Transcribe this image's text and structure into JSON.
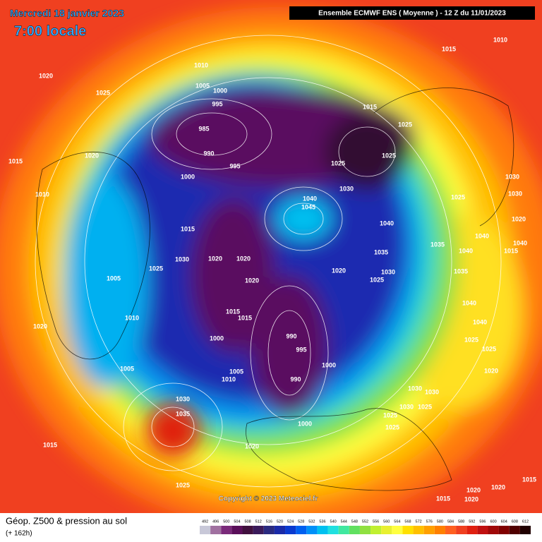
{
  "header": {
    "date": "Mercredi 18 janvier 2023",
    "time": "7:00 locale",
    "run": "Ensemble ECMWF ENS  ( Moyenne )  -  12 Z du 11/01/2023"
  },
  "copyright": "Copyright © 2023 Meteociel.fr",
  "footer": {
    "title": "Géop. Z500 & pression au sol",
    "lead": "(+ 162h)"
  },
  "scale": {
    "labels": [
      492,
      496,
      500,
      504,
      508,
      512,
      516,
      520,
      524,
      528,
      532,
      536,
      540,
      544,
      548,
      552,
      556,
      560,
      564,
      568,
      572,
      576,
      580,
      584,
      588,
      592,
      596,
      600,
      604,
      608,
      612
    ],
    "colors": [
      "#c8c8d8",
      "#a070a0",
      "#7a2a7a",
      "#5a0f5a",
      "#40103e",
      "#3a1a5a",
      "#2a2a80",
      "#1a2aa8",
      "#0a3ad0",
      "#0060f0",
      "#0090f8",
      "#00c0f0",
      "#20e0e0",
      "#40e8a0",
      "#60e060",
      "#90e040",
      "#c0f030",
      "#e8f030",
      "#ffff40",
      "#ffe000",
      "#ffc000",
      "#ffa000",
      "#ff8000",
      "#ff6020",
      "#f04020",
      "#e02010",
      "#c01010",
      "#a00808",
      "#800000",
      "#500000",
      "#200000"
    ]
  },
  "isobar_labels": [
    1010,
    1005,
    1000,
    995,
    985,
    990,
    995,
    1000,
    1020,
    1025,
    1020,
    1015,
    1010,
    1015,
    1030,
    1025,
    1005,
    1010,
    1020,
    1005,
    1020,
    1020,
    1020,
    1015,
    1015,
    1000,
    1005,
    1010,
    990,
    995,
    1000,
    990,
    1000,
    1040,
    1045,
    1020,
    1030,
    1025,
    1035,
    1040,
    1030,
    1025,
    1025,
    1015,
    1025,
    1015,
    1010,
    1030,
    1030,
    1025,
    1035,
    1040,
    1040,
    1040,
    1015,
    1020,
    1035,
    1040,
    1040,
    1025,
    1025,
    1020,
    1030,
    1030,
    1030,
    1025,
    1025,
    1025,
    1030,
    1035,
    1015,
    1020,
    1025,
    1015,
    1020,
    1020,
    1015,
    1020
  ]
}
